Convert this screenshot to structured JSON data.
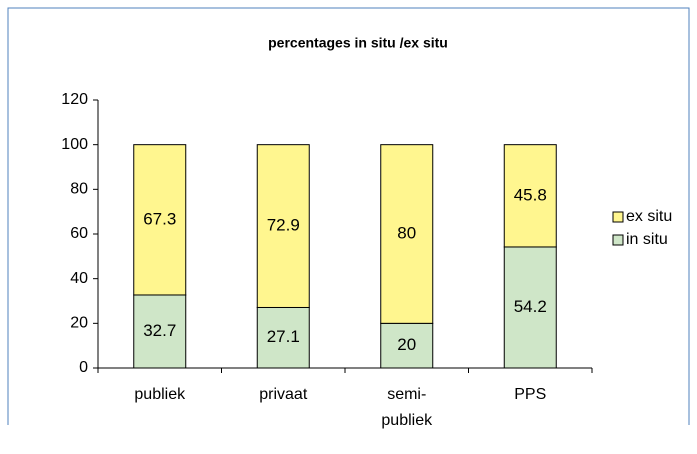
{
  "chart_data": {
    "type": "stacked_bar",
    "title": "percentages in situ /ex situ",
    "categories": [
      "publiek",
      "privaat",
      "semi-publiek",
      "PPS"
    ],
    "series": [
      {
        "name": "in situ",
        "color": "#cfe6c8",
        "values": [
          32.7,
          27.1,
          20,
          54.2
        ]
      },
      {
        "name": "ex situ",
        "color": "#fff68f",
        "values": [
          67.3,
          72.9,
          80,
          45.8
        ]
      }
    ],
    "ylim": [
      0,
      120
    ],
    "yticks": [
      0,
      20,
      40,
      60,
      80,
      100,
      120
    ],
    "grid": false,
    "legend": "right"
  }
}
